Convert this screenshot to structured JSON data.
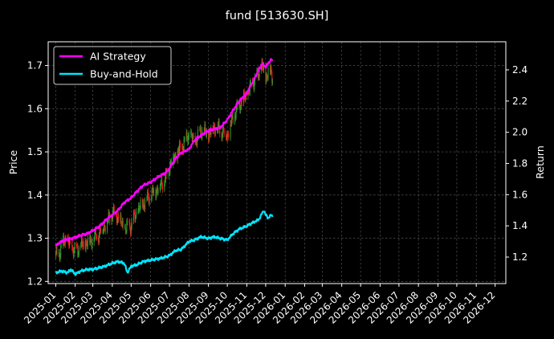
{
  "chart_data": {
    "type": "line",
    "title": "fund [513630.SH]",
    "ylabel_left": "Price",
    "ylabel_right": "Return",
    "x_ticks": [
      "2025-01",
      "2025-02",
      "2025-03",
      "2025-04",
      "2025-05",
      "2025-06",
      "2025-07",
      "2025-08",
      "2025-09",
      "2025-10",
      "2025-11",
      "2025-12",
      "2026-01",
      "2026-02",
      "2026-03",
      "2026-04",
      "2026-05",
      "2026-06",
      "2026-07",
      "2026-08",
      "2026-09",
      "2026-10",
      "2026-11",
      "2026-12"
    ],
    "xlim": [
      "2024-12-20",
      "2026-12-18"
    ],
    "left_yticks": [
      1.2,
      1.3,
      1.4,
      1.5,
      1.6,
      1.7
    ],
    "left_ylim": [
      1.195,
      1.755
    ],
    "right_yticks": [
      1.2,
      1.4,
      1.6,
      1.8,
      2.0,
      2.2,
      2.4
    ],
    "right_ylim": [
      1.03,
      2.58
    ],
    "grid": true,
    "legend_position": "top-left",
    "colors": {
      "ai_strategy": "#ff00ff",
      "buy_and_hold": "#00e5ff",
      "candle_up": "#2ea02e",
      "candle_down": "#e8211c"
    },
    "series": [
      {
        "name": "AI Strategy",
        "axis": "right",
        "points": [
          [
            "2025-01-01",
            1.27
          ],
          [
            "2025-01-06",
            1.29
          ],
          [
            "2025-01-15",
            1.31
          ],
          [
            "2025-01-28",
            1.32
          ],
          [
            "2025-02-10",
            1.34
          ],
          [
            "2025-02-20",
            1.35
          ],
          [
            "2025-03-01",
            1.37
          ],
          [
            "2025-03-12",
            1.4
          ],
          [
            "2025-03-25",
            1.45
          ],
          [
            "2025-04-01",
            1.47
          ],
          [
            "2025-04-10",
            1.5
          ],
          [
            "2025-04-20",
            1.55
          ],
          [
            "2025-05-01",
            1.58
          ],
          [
            "2025-05-10",
            1.62
          ],
          [
            "2025-05-20",
            1.66
          ],
          [
            "2025-06-01",
            1.68
          ],
          [
            "2025-06-15",
            1.72
          ],
          [
            "2025-06-25",
            1.74
          ],
          [
            "2025-07-01",
            1.77
          ],
          [
            "2025-07-10",
            1.83
          ],
          [
            "2025-07-20",
            1.87
          ],
          [
            "2025-08-01",
            1.89
          ],
          [
            "2025-08-10",
            1.95
          ],
          [
            "2025-08-20",
            1.98
          ],
          [
            "2025-09-01",
            2.01
          ],
          [
            "2025-09-10",
            2.02
          ],
          [
            "2025-09-20",
            2.03
          ],
          [
            "2025-10-01",
            2.08
          ],
          [
            "2025-10-10",
            2.14
          ],
          [
            "2025-10-20",
            2.2
          ],
          [
            "2025-11-01",
            2.25
          ],
          [
            "2025-11-10",
            2.32
          ],
          [
            "2025-11-20",
            2.4
          ],
          [
            "2025-11-25",
            2.44
          ],
          [
            "2025-12-01",
            2.42
          ],
          [
            "2025-12-05",
            2.44
          ],
          [
            "2025-12-10",
            2.47
          ],
          [
            "2025-12-12",
            2.45
          ]
        ]
      },
      {
        "name": "Buy-and-Hold",
        "axis": "right",
        "points": [
          [
            "2025-01-01",
            1.1
          ],
          [
            "2025-01-10",
            1.11
          ],
          [
            "2025-01-20",
            1.1
          ],
          [
            "2025-01-25",
            1.12
          ],
          [
            "2025-02-01",
            1.09
          ],
          [
            "2025-02-10",
            1.11
          ],
          [
            "2025-02-20",
            1.12
          ],
          [
            "2025-03-01",
            1.12
          ],
          [
            "2025-03-10",
            1.13
          ],
          [
            "2025-03-20",
            1.14
          ],
          [
            "2025-04-01",
            1.16
          ],
          [
            "2025-04-10",
            1.17
          ],
          [
            "2025-04-20",
            1.16
          ],
          [
            "2025-04-25",
            1.1
          ],
          [
            "2025-05-01",
            1.14
          ],
          [
            "2025-05-10",
            1.15
          ],
          [
            "2025-05-20",
            1.17
          ],
          [
            "2025-06-01",
            1.18
          ],
          [
            "2025-06-15",
            1.19
          ],
          [
            "2025-06-25",
            1.2
          ],
          [
            "2025-07-01",
            1.21
          ],
          [
            "2025-07-10",
            1.24
          ],
          [
            "2025-07-20",
            1.25
          ],
          [
            "2025-08-01",
            1.3
          ],
          [
            "2025-08-10",
            1.31
          ],
          [
            "2025-08-20",
            1.33
          ],
          [
            "2025-09-01",
            1.32
          ],
          [
            "2025-09-10",
            1.33
          ],
          [
            "2025-09-20",
            1.32
          ],
          [
            "2025-10-01",
            1.31
          ],
          [
            "2025-10-10",
            1.35
          ],
          [
            "2025-10-20",
            1.38
          ],
          [
            "2025-11-01",
            1.4
          ],
          [
            "2025-11-10",
            1.42
          ],
          [
            "2025-11-20",
            1.44
          ],
          [
            "2025-11-28",
            1.5
          ],
          [
            "2025-12-01",
            1.47
          ],
          [
            "2025-12-05",
            1.45
          ],
          [
            "2025-12-10",
            1.47
          ],
          [
            "2025-12-12",
            1.46
          ]
        ]
      },
      {
        "name": "Price",
        "type": "candlestick",
        "axis": "left",
        "points": [
          [
            "2025-01-01",
            1.26
          ],
          [
            "2025-01-08",
            1.27
          ],
          [
            "2025-01-16",
            1.3
          ],
          [
            "2025-01-24",
            1.28
          ],
          [
            "2025-02-01",
            1.27
          ],
          [
            "2025-02-10",
            1.28
          ],
          [
            "2025-02-20",
            1.29
          ],
          [
            "2025-03-01",
            1.3
          ],
          [
            "2025-03-10",
            1.31
          ],
          [
            "2025-03-20",
            1.33
          ],
          [
            "2025-04-01",
            1.36
          ],
          [
            "2025-04-10",
            1.35
          ],
          [
            "2025-04-20",
            1.32
          ],
          [
            "2025-05-01",
            1.33
          ],
          [
            "2025-05-10",
            1.36
          ],
          [
            "2025-05-20",
            1.38
          ],
          [
            "2025-06-01",
            1.4
          ],
          [
            "2025-06-15",
            1.42
          ],
          [
            "2025-06-25",
            1.44
          ],
          [
            "2025-07-01",
            1.47
          ],
          [
            "2025-07-10",
            1.49
          ],
          [
            "2025-07-20",
            1.51
          ],
          [
            "2025-08-01",
            1.54
          ],
          [
            "2025-08-10",
            1.52
          ],
          [
            "2025-08-20",
            1.55
          ],
          [
            "2025-09-01",
            1.54
          ],
          [
            "2025-09-10",
            1.56
          ],
          [
            "2025-09-20",
            1.55
          ],
          [
            "2025-10-01",
            1.54
          ],
          [
            "2025-10-10",
            1.58
          ],
          [
            "2025-10-20",
            1.61
          ],
          [
            "2025-11-01",
            1.63
          ],
          [
            "2025-11-10",
            1.66
          ],
          [
            "2025-11-20",
            1.68
          ],
          [
            "2025-11-25",
            1.7
          ],
          [
            "2025-12-01",
            1.67
          ],
          [
            "2025-12-05",
            1.69
          ],
          [
            "2025-12-10",
            1.68
          ],
          [
            "2025-12-12",
            1.67
          ]
        ]
      }
    ]
  }
}
